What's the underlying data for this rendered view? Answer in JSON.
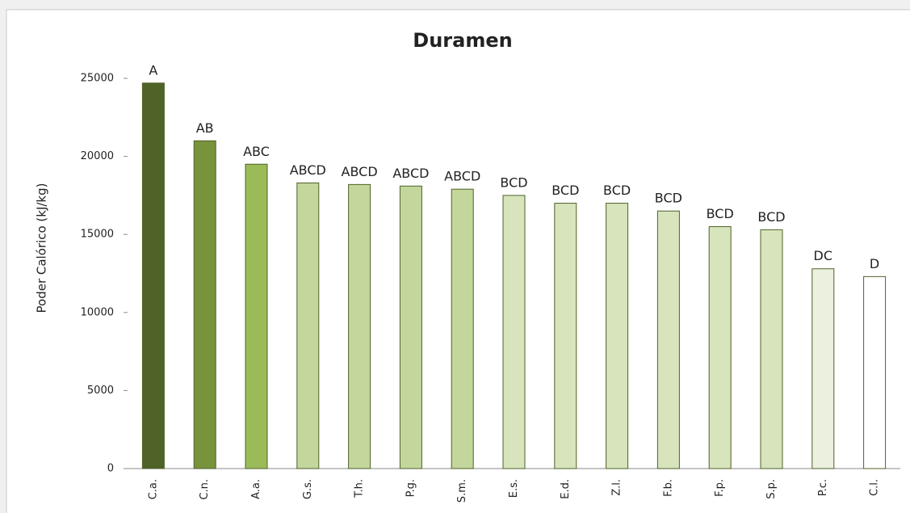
{
  "chart_data": {
    "type": "bar",
    "title": "Duramen",
    "y_label": "Poder Calórico (kJ/kg)",
    "categories": [
      "C.a.",
      "C.n.",
      "A.a.",
      "G.s.",
      "T.h.",
      "P.g.",
      "S.m.",
      "E.s.",
      "E.d.",
      "Z.l.",
      "F.b.",
      "F.p.",
      "S.p.",
      "P.c.",
      "C.l."
    ],
    "values": [
      24700,
      21000,
      19500,
      18300,
      18200,
      18100,
      17900,
      17500,
      17000,
      17000,
      16500,
      15500,
      15300,
      12800,
      12300
    ],
    "annotations": [
      "A",
      "AB",
      "ABC",
      "ABCD",
      "ABCD",
      "ABCD",
      "ABCD",
      "BCD",
      "BCD",
      "BCD",
      "BCD",
      "BCD",
      "BCD",
      "DC",
      "D"
    ],
    "colors": [
      "#4f6228",
      "#77933c",
      "#9bbb59",
      "#c3d69b",
      "#c3d69b",
      "#c3d69b",
      "#c3d69b",
      "#d7e4bc",
      "#d7e4bc",
      "#d7e4bc",
      "#d7e4bc",
      "#d7e4bc",
      "#d7e4bc",
      "#ebf1de",
      "#ffffff"
    ],
    "ylim": [
      0,
      25000
    ],
    "yticks": [
      0,
      5000,
      10000,
      15000,
      20000,
      25000
    ],
    "grid": false
  }
}
